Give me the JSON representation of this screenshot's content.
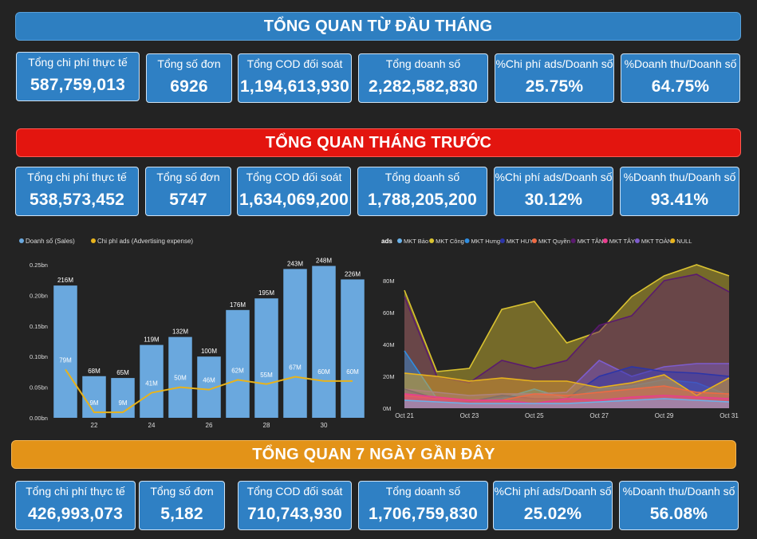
{
  "sections": [
    {
      "title": "TỔNG QUAN TỪ ĐẦU THÁNG",
      "cards": [
        {
          "label": "Tổng chi phí thực tế",
          "value": "587,759,013"
        },
        {
          "label": "Tổng số đơn",
          "value": "6926"
        },
        {
          "label": "Tổng COD đối soát",
          "value": "1,194,613,930"
        },
        {
          "label": "Tổng doanh số",
          "value": "2,282,582,830"
        },
        {
          "label": "%Chi phí ads/Doanh số",
          "value": "25.75%"
        },
        {
          "label": "%Doanh thu/Doanh số",
          "value": "64.75%"
        }
      ]
    },
    {
      "title": "TỔNG QUAN THÁNG TRƯỚC",
      "cards": [
        {
          "label": "Tổng chi phí thực tế",
          "value": "538,573,452"
        },
        {
          "label": "Tổng số đơn",
          "value": "5747"
        },
        {
          "label": "Tổng COD đối soát",
          "value": "1,634,069,200"
        },
        {
          "label": "Tổng doanh số",
          "value": "1,788,205,200"
        },
        {
          "label": "%Chi phí ads/Doanh số",
          "value": "30.12%"
        },
        {
          "label": "%Doanh thu/Doanh số",
          "value": "93.41%"
        }
      ]
    },
    {
      "title": "TỔNG QUAN 7 NGÀY GẦN ĐÂY",
      "cards": [
        {
          "label": "Tổng chi phí thực tế",
          "value": "426,993,073"
        },
        {
          "label": "Tổng số đơn",
          "value": "5,182"
        },
        {
          "label": "Tổng COD đối soát",
          "value": "710,743,930"
        },
        {
          "label": "Tổng doanh số",
          "value": "1,706,759,830"
        },
        {
          "label": "%Chi phí ads/Doanh số",
          "value": "25.02%"
        },
        {
          "label": "%Doanh thu/Doanh số",
          "value": "56.08%"
        }
      ]
    }
  ],
  "colors": {
    "bar": "#6aa8de",
    "line": "#e8b31c"
  },
  "chart_data": [
    {
      "type": "bar",
      "legend": [
        "Doanh số (Sales)",
        "Chi phí ads (Advertising expense)"
      ],
      "legend_position": "top-left",
      "x": [
        21,
        22,
        23,
        24,
        25,
        26,
        27,
        28,
        29,
        30,
        31
      ],
      "x_tick_labels": [
        "22",
        "24",
        "26",
        "28",
        "30"
      ],
      "x_tick_values": [
        22,
        24,
        26,
        28,
        30
      ],
      "y_tick_labels": [
        "0.00bn",
        "0.05bn",
        "0.10bn",
        "0.15bn",
        "0.20bn",
        "0.25bn"
      ],
      "ylim": [
        0,
        250
      ],
      "series": [
        {
          "name": "Doanh số (Sales)",
          "kind": "bar",
          "values": [
            216,
            68,
            65,
            119,
            132,
            100,
            176,
            195,
            243,
            248,
            226
          ],
          "labels": [
            "216M",
            "68M",
            "65M",
            "119M",
            "132M",
            "100M",
            "176M",
            "195M",
            "243M",
            "248M",
            "226M"
          ]
        },
        {
          "name": "Chi phí ads (Advertising expense)",
          "kind": "line",
          "values": [
            79,
            9,
            9,
            41,
            50,
            46,
            62,
            55,
            67,
            60,
            60
          ],
          "labels": [
            "79M",
            "9M",
            "9M",
            "41M",
            "50M",
            "46M",
            "62M",
            "55M",
            "67M",
            "60M",
            "60M"
          ]
        }
      ]
    },
    {
      "type": "area",
      "legend_title": "ads",
      "legend_position": "top",
      "x": [
        "Oct 21",
        "Oct 22",
        "Oct 23",
        "Oct 24",
        "Oct 25",
        "Oct 26",
        "Oct 27",
        "Oct 28",
        "Oct 29",
        "Oct 30",
        "Oct 31"
      ],
      "x_tick_labels": [
        "Oct 21",
        "Oct 23",
        "Oct 25",
        "Oct 27",
        "Oct 29",
        "Oct 31"
      ],
      "x_tick_index": [
        0,
        2,
        4,
        6,
        8,
        10
      ],
      "y_tick_labels": [
        "0M",
        "20M",
        "40M",
        "60M",
        "80M"
      ],
      "ylim": [
        0,
        90
      ],
      "series": [
        {
          "name": "MKT Bảo",
          "color": "#6ab1e8",
          "values": [
            5,
            4,
            3,
            3,
            3,
            3,
            4,
            5,
            6,
            5,
            4
          ]
        },
        {
          "name": "MKT Công",
          "color": "#d9c230",
          "values": [
            74,
            23,
            25,
            62,
            67,
            41,
            48,
            70,
            83,
            90,
            83
          ]
        },
        {
          "name": "MKT Hưng",
          "color": "#2f8de0",
          "values": [
            36,
            6,
            5,
            6,
            12,
            6,
            12,
            14,
            18,
            16,
            8
          ]
        },
        {
          "name": "MKT HUY",
          "color": "#2c35a8",
          "values": [
            12,
            6,
            4,
            8,
            6,
            6,
            20,
            26,
            23,
            22,
            20
          ]
        },
        {
          "name": "MKT Quyền",
          "color": "#ee6a43",
          "values": [
            8,
            6,
            5,
            5,
            9,
            8,
            10,
            12,
            14,
            10,
            9
          ]
        },
        {
          "name": "MKT TÂN",
          "color": "#5a1a6e",
          "values": [
            70,
            20,
            16,
            30,
            25,
            30,
            52,
            58,
            80,
            84,
            73
          ]
        },
        {
          "name": "MKT TÂY",
          "color": "#ea3d8f",
          "values": [
            9,
            7,
            5,
            5,
            3,
            6,
            5,
            7,
            8,
            7,
            6
          ]
        },
        {
          "name": "MKT TOÀN",
          "color": "#7d5ccc",
          "values": [
            12,
            10,
            8,
            9,
            9,
            10,
            30,
            20,
            26,
            28,
            28
          ]
        },
        {
          "name": "NULL",
          "color": "#e8b31c",
          "values": [
            22,
            20,
            17,
            19,
            17,
            17,
            13,
            16,
            21,
            8,
            19
          ]
        }
      ]
    }
  ]
}
